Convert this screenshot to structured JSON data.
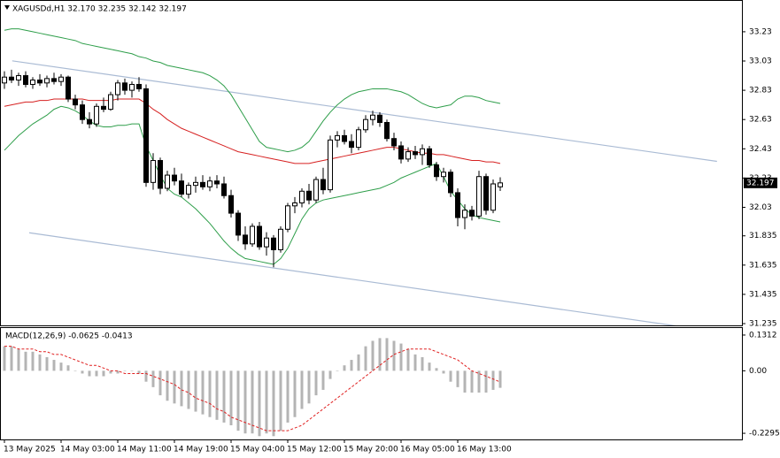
{
  "chart_data": [
    {
      "type": "candlestick",
      "title": "XAGUSDd,H1  32.170 32.235 32.142 32.197",
      "categories": [
        "13 May 2025",
        null,
        null,
        null,
        null,
        null,
        null,
        null,
        "14 May 03:00",
        null,
        null,
        null,
        null,
        null,
        null,
        null,
        "14 May 11:00",
        null,
        null,
        null,
        null,
        null,
        null,
        null,
        "14 May 19:00",
        null,
        null,
        null,
        null,
        null,
        null,
        null,
        "15 May 04:00",
        null,
        null,
        null,
        null,
        null,
        null,
        null,
        "15 May 12:00",
        null,
        null,
        null,
        null,
        null,
        null,
        null,
        "15 May 20:00",
        null,
        null,
        null,
        null,
        null,
        null,
        null,
        "16 May 05:00",
        null,
        null,
        null,
        null,
        null,
        null,
        null,
        "16 May 13:00",
        null,
        null,
        null,
        null,
        null,
        null
      ],
      "open": [
        32.88,
        32.92,
        32.9,
        32.93,
        32.87,
        32.9,
        32.88,
        32.91,
        32.89,
        32.92,
        32.77,
        32.73,
        32.63,
        32.6,
        32.72,
        32.7,
        32.8,
        32.88,
        32.83,
        32.87,
        32.84,
        32.2,
        32.35,
        32.16,
        32.25,
        32.21,
        32.12,
        32.18,
        32.2,
        32.17,
        32.21,
        32.19,
        32.11,
        31.99,
        31.84,
        31.78,
        31.9,
        31.76,
        31.82,
        31.74,
        31.88,
        32.04,
        32.06,
        32.14,
        32.08,
        32.22,
        32.15,
        32.49,
        32.52,
        32.48,
        32.44,
        32.56,
        32.63,
        32.66,
        32.61,
        32.5,
        32.45,
        32.36,
        32.41,
        32.39,
        32.43,
        32.32,
        32.24,
        32.27,
        32.13,
        31.96,
        32.01,
        31.97,
        32.24,
        32.01,
        32.17
      ],
      "high": [
        32.96,
        32.97,
        32.95,
        32.96,
        32.92,
        32.94,
        32.93,
        32.95,
        32.94,
        32.93,
        32.8,
        32.76,
        32.68,
        32.74,
        32.78,
        32.82,
        32.9,
        32.91,
        32.89,
        32.92,
        32.87,
        32.4,
        32.37,
        32.28,
        32.3,
        32.26,
        32.2,
        32.24,
        32.25,
        32.24,
        32.25,
        32.24,
        32.15,
        32.01,
        31.9,
        31.92,
        31.93,
        31.86,
        31.84,
        31.9,
        32.06,
        32.1,
        32.16,
        32.19,
        32.24,
        32.3,
        32.52,
        32.55,
        32.56,
        32.53,
        32.58,
        32.66,
        32.69,
        32.68,
        32.63,
        32.54,
        32.48,
        32.44,
        32.45,
        32.46,
        32.45,
        32.34,
        32.3,
        32.29,
        32.16,
        32.05,
        32.04,
        32.28,
        32.26,
        32.22,
        32.235
      ],
      "low": [
        32.84,
        32.88,
        32.86,
        32.85,
        32.84,
        32.86,
        32.85,
        32.87,
        32.86,
        32.75,
        32.7,
        32.6,
        32.57,
        32.58,
        32.68,
        32.69,
        32.76,
        32.8,
        32.78,
        32.82,
        32.17,
        32.15,
        32.12,
        32.14,
        32.18,
        32.1,
        32.09,
        32.13,
        32.15,
        32.14,
        32.16,
        32.09,
        31.96,
        31.8,
        31.74,
        31.76,
        31.74,
        31.7,
        31.62,
        31.72,
        31.86,
        31.99,
        32.03,
        32.05,
        32.06,
        32.12,
        32.13,
        32.44,
        32.46,
        32.4,
        32.42,
        32.54,
        32.59,
        32.58,
        32.48,
        32.42,
        32.33,
        32.34,
        32.36,
        32.32,
        32.3,
        32.21,
        32.2,
        32.1,
        31.9,
        31.88,
        31.94,
        31.95,
        31.98,
        31.99,
        32.142
      ],
      "close": [
        32.92,
        32.9,
        32.93,
        32.87,
        32.9,
        32.88,
        32.91,
        32.89,
        32.92,
        32.77,
        32.73,
        32.63,
        32.6,
        32.72,
        32.7,
        32.8,
        32.88,
        32.83,
        32.87,
        32.84,
        32.2,
        32.35,
        32.16,
        32.25,
        32.21,
        32.12,
        32.18,
        32.2,
        32.17,
        32.21,
        32.19,
        32.11,
        31.99,
        31.84,
        31.78,
        31.9,
        31.76,
        31.82,
        31.74,
        31.88,
        32.04,
        32.06,
        32.14,
        32.08,
        32.22,
        32.15,
        32.49,
        32.52,
        32.48,
        32.44,
        32.56,
        32.63,
        32.66,
        32.61,
        32.5,
        32.45,
        32.36,
        32.41,
        32.39,
        32.43,
        32.32,
        32.24,
        32.27,
        32.13,
        31.96,
        32.01,
        31.97,
        32.24,
        32.01,
        32.19,
        32.197
      ],
      "series": [
        {
          "color": "#2e9e4a",
          "values": [
            33.24,
            33.25,
            33.25,
            33.24,
            33.23,
            33.22,
            33.21,
            33.2,
            33.19,
            33.18,
            33.17,
            33.15,
            33.14,
            33.13,
            33.12,
            33.11,
            33.1,
            33.09,
            33.08,
            33.06,
            33.05,
            33.03,
            33.02,
            33.0,
            32.99,
            32.98,
            32.97,
            32.96,
            32.95,
            32.93,
            32.9,
            32.86,
            32.8,
            32.72,
            32.64,
            32.56,
            32.48,
            32.44,
            32.43,
            32.42,
            32.41,
            32.42,
            32.44,
            32.48,
            32.55,
            32.62,
            32.68,
            32.73,
            32.77,
            32.8,
            32.82,
            32.83,
            32.84,
            32.84,
            32.84,
            32.83,
            32.82,
            32.8,
            32.77,
            32.74,
            32.72,
            32.71,
            32.72,
            32.73,
            32.77,
            32.79,
            32.79,
            32.78,
            32.76,
            32.75,
            32.74
          ]
        },
        {
          "color": "#d62020",
          "values": [
            32.72,
            32.73,
            32.74,
            32.75,
            32.75,
            32.76,
            32.76,
            32.77,
            32.77,
            32.77,
            32.77,
            32.77,
            32.76,
            32.76,
            32.76,
            32.76,
            32.77,
            32.77,
            32.77,
            32.77,
            32.74,
            32.7,
            32.67,
            32.63,
            32.6,
            32.57,
            32.55,
            32.53,
            32.51,
            32.49,
            32.47,
            32.45,
            32.43,
            32.41,
            32.4,
            32.39,
            32.38,
            32.37,
            32.36,
            32.35,
            32.34,
            32.33,
            32.33,
            32.33,
            32.34,
            32.35,
            32.36,
            32.37,
            32.38,
            32.39,
            32.4,
            32.41,
            32.42,
            32.43,
            32.44,
            32.44,
            32.43,
            32.42,
            32.41,
            32.4,
            32.4,
            32.39,
            32.39,
            32.38,
            32.37,
            32.36,
            32.35,
            32.35,
            32.34,
            32.34,
            32.33
          ]
        },
        {
          "color": "#2e9e4a",
          "values": [
            32.42,
            32.47,
            32.52,
            32.56,
            32.6,
            32.63,
            32.66,
            32.7,
            32.72,
            32.71,
            32.69,
            32.66,
            32.62,
            32.59,
            32.58,
            32.58,
            32.59,
            32.59,
            32.6,
            32.6,
            32.45,
            32.35,
            32.25,
            32.16,
            32.12,
            32.1,
            32.06,
            32.02,
            31.97,
            31.92,
            31.86,
            31.8,
            31.75,
            31.71,
            31.68,
            31.67,
            31.66,
            31.65,
            31.64,
            31.68,
            31.75,
            31.85,
            31.95,
            32.02,
            32.06,
            32.08,
            32.09,
            32.1,
            32.11,
            32.12,
            32.13,
            32.14,
            32.15,
            32.16,
            32.18,
            32.2,
            32.23,
            32.25,
            32.27,
            32.29,
            32.31,
            32.33,
            32.24,
            32.14,
            32.08,
            32.02,
            31.98,
            31.96,
            31.95,
            31.94,
            31.93
          ]
        }
      ],
      "trendlines": [
        {
          "color": "#aabbd4",
          "x": [
            1.1,
            100.6
          ],
          "values": [
            33.031,
            32.344
          ]
        },
        {
          "color": "#aabbd4",
          "x": [
            3.5,
            102.9
          ],
          "values": [
            31.856,
            31.163
          ]
        }
      ],
      "last_price": 32.197,
      "xlim": [
        -0.625,
        104.125
      ],
      "ylim": [
        31.223,
        33.441
      ],
      "yticks": [
        33.23,
        33.03,
        32.83,
        32.63,
        32.43,
        32.23,
        32.03,
        31.835,
        31.635,
        31.435,
        31.235
      ]
    },
    {
      "type": "bar",
      "title": "MACD(12,26,9) -0.0625 -0.0413",
      "color": "#b4b4b4",
      "values": [
        0.09,
        0.09,
        0.08,
        0.07,
        0.07,
        0.06,
        0.05,
        0.04,
        0.03,
        0.02,
        0.0,
        -0.01,
        -0.02,
        -0.02,
        -0.02,
        -0.01,
        -0.01,
        0.0,
        0.0,
        -0.01,
        -0.04,
        -0.06,
        -0.09,
        -0.11,
        -0.12,
        -0.13,
        -0.14,
        -0.15,
        -0.16,
        -0.17,
        -0.18,
        -0.19,
        -0.2,
        -0.22,
        -0.23,
        -0.23,
        -0.24,
        -0.23,
        -0.24,
        -0.22,
        -0.19,
        -0.17,
        -0.14,
        -0.12,
        -0.09,
        -0.07,
        -0.03,
        0.0,
        0.02,
        0.04,
        0.06,
        0.09,
        0.11,
        0.12,
        0.12,
        0.11,
        0.1,
        0.08,
        0.06,
        0.05,
        0.03,
        0.01,
        -0.01,
        -0.04,
        -0.06,
        -0.08,
        -0.08,
        -0.08,
        -0.08,
        -0.07,
        -0.0625
      ],
      "series": [
        {
          "color": "#e02020",
          "values": [
            0.09,
            0.09,
            0.08,
            0.08,
            0.08,
            0.07,
            0.07,
            0.06,
            0.06,
            0.05,
            0.04,
            0.03,
            0.02,
            0.02,
            0.01,
            0.0,
            0.0,
            -0.01,
            -0.01,
            -0.01,
            -0.01,
            -0.02,
            -0.03,
            -0.04,
            -0.05,
            -0.07,
            -0.08,
            -0.1,
            -0.11,
            -0.12,
            -0.14,
            -0.15,
            -0.17,
            -0.18,
            -0.19,
            -0.2,
            -0.21,
            -0.22,
            -0.22,
            -0.22,
            -0.22,
            -0.21,
            -0.2,
            -0.18,
            -0.16,
            -0.14,
            -0.12,
            -0.1,
            -0.08,
            -0.06,
            -0.04,
            -0.02,
            0.0,
            0.02,
            0.04,
            0.06,
            0.07,
            0.08,
            0.08,
            0.08,
            0.08,
            0.07,
            0.06,
            0.05,
            0.04,
            0.02,
            0.0,
            -0.01,
            -0.02,
            -0.03,
            -0.0413
          ]
        }
      ],
      "xlim": [
        -0.625,
        104.125
      ],
      "ylim": [
        -0.252,
        0.157
      ],
      "yticks": [
        0.1312,
        {
          "value": 0,
          "label": "0.00"
        },
        -0.2295
      ]
    }
  ]
}
